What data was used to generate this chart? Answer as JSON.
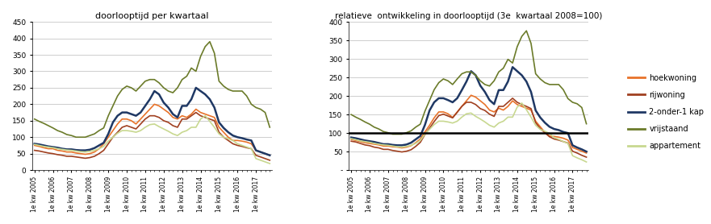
{
  "title1": "doorlooptijd per kwartaal",
  "title2": "relatieve  ontwikkeling in doorlooptijd (3e  kwartaal 2008=100)",
  "colors": {
    "hoekwoning": "#E8732A",
    "rijwoning": "#A04020",
    "twee_onder_1_kap": "#1F3864",
    "vrijstaand": "#6B7B2A",
    "appartement": "#C8D890"
  },
  "legend_labels": [
    "hoekwoning",
    "rijwoning",
    "2-onder-1 kap",
    "vrijstaand",
    "appartement"
  ],
  "x_labels_annual": [
    "1e kw 2005",
    "1e kw 2006",
    "1e kw 2007",
    "1e kw 2008",
    "1e kw 2009",
    "1e kw 2010",
    "1e kw 2011",
    "1e kw 2012",
    "1e kw 2013",
    "1e kw 2014",
    "1e kw 2015",
    "1e kw 2016",
    "1e kw 2017"
  ],
  "chart1_ylim": [
    0,
    450
  ],
  "chart1_yticks": [
    0,
    50,
    100,
    150,
    200,
    250,
    300,
    350,
    400,
    450
  ],
  "chart2_ylim": [
    0,
    400
  ],
  "chart2_yticks": [
    0,
    50,
    100,
    150,
    200,
    250,
    300,
    350,
    400
  ],
  "chart2_yticklabels": [
    "-",
    "50",
    "100",
    "150",
    "200",
    "250",
    "300",
    "350",
    "400"
  ],
  "hoekwoning_chart1": [
    75,
    72,
    68,
    65,
    65,
    60,
    58,
    55,
    55,
    52,
    50,
    48,
    50,
    55,
    65,
    80,
    100,
    120,
    140,
    155,
    155,
    150,
    140,
    155,
    170,
    185,
    200,
    195,
    185,
    175,
    160,
    155,
    165,
    160,
    170,
    185,
    175,
    170,
    165,
    160,
    130,
    115,
    100,
    90,
    90,
    88,
    85,
    80,
    60,
    55,
    50,
    45
  ],
  "rijwoning_chart1": [
    60,
    58,
    55,
    52,
    50,
    47,
    45,
    42,
    42,
    40,
    38,
    36,
    38,
    42,
    50,
    60,
    80,
    100,
    115,
    130,
    135,
    130,
    125,
    140,
    155,
    165,
    165,
    160,
    150,
    145,
    135,
    130,
    155,
    155,
    165,
    175,
    165,
    160,
    155,
    150,
    115,
    100,
    90,
    80,
    75,
    72,
    68,
    65,
    45,
    40,
    35,
    30
  ],
  "twee_onder_1_kap_chart1": [
    80,
    78,
    75,
    72,
    70,
    68,
    65,
    63,
    63,
    61,
    60,
    60,
    62,
    67,
    75,
    83,
    110,
    145,
    165,
    175,
    175,
    170,
    165,
    175,
    195,
    215,
    240,
    230,
    205,
    190,
    170,
    160,
    195,
    195,
    215,
    250,
    240,
    230,
    215,
    190,
    145,
    128,
    115,
    105,
    100,
    97,
    93,
    90,
    60,
    55,
    50,
    45
  ],
  "vrijstaand_chart1": [
    155,
    148,
    142,
    135,
    128,
    120,
    115,
    108,
    105,
    100,
    100,
    100,
    105,
    110,
    120,
    128,
    165,
    195,
    225,
    245,
    255,
    250,
    240,
    255,
    270,
    275,
    275,
    265,
    250,
    240,
    235,
    250,
    275,
    285,
    310,
    300,
    345,
    375,
    390,
    355,
    270,
    255,
    245,
    240,
    240,
    240,
    225,
    200,
    190,
    185,
    175,
    130
  ],
  "appartement_chart1": [
    78,
    75,
    72,
    70,
    68,
    65,
    63,
    61,
    60,
    58,
    56,
    55,
    57,
    60,
    65,
    72,
    88,
    100,
    112,
    120,
    120,
    118,
    115,
    120,
    130,
    138,
    140,
    132,
    125,
    118,
    110,
    105,
    115,
    120,
    130,
    130,
    155,
    165,
    148,
    130,
    110,
    100,
    95,
    90,
    80,
    75,
    70,
    65,
    35,
    30,
    25,
    20
  ],
  "hoekwoning_chart2": [
    83,
    80,
    77,
    74,
    72,
    70,
    68,
    65,
    65,
    63,
    62,
    60,
    62,
    66,
    74,
    84,
    103,
    121,
    141,
    157,
    157,
    152,
    142,
    157,
    172,
    187,
    202,
    197,
    187,
    177,
    162,
    157,
    167,
    162,
    172,
    187,
    177,
    172,
    167,
    162,
    132,
    117,
    102,
    92,
    91,
    89,
    86,
    81,
    61,
    56,
    51,
    46
  ],
  "rijwoning_chart2": [
    78,
    76,
    72,
    68,
    66,
    62,
    60,
    56,
    56,
    53,
    51,
    49,
    51,
    55,
    64,
    75,
    96,
    113,
    131,
    147,
    151,
    146,
    141,
    156,
    172,
    183,
    183,
    177,
    166,
    161,
    151,
    145,
    172,
    172,
    183,
    194,
    183,
    177,
    172,
    166,
    128,
    112,
    101,
    90,
    84,
    81,
    77,
    73,
    51,
    46,
    40,
    35
  ],
  "twee_onder_1_kap_chart2": [
    88,
    86,
    83,
    80,
    78,
    76,
    73,
    70,
    70,
    68,
    67,
    67,
    69,
    74,
    83,
    92,
    122,
    161,
    183,
    194,
    194,
    189,
    183,
    194,
    216,
    239,
    267,
    256,
    228,
    211,
    189,
    178,
    216,
    216,
    239,
    278,
    267,
    256,
    239,
    211,
    161,
    142,
    128,
    117,
    111,
    108,
    103,
    100,
    67,
    61,
    56,
    50
  ],
  "vrijstaand_chart2": [
    150,
    143,
    137,
    130,
    124,
    116,
    111,
    104,
    101,
    97,
    97,
    97,
    101,
    106,
    116,
    124,
    159,
    188,
    217,
    236,
    246,
    241,
    231,
    246,
    260,
    265,
    265,
    256,
    241,
    231,
    227,
    241,
    265,
    275,
    299,
    289,
    333,
    361,
    376,
    342,
    260,
    246,
    236,
    231,
    231,
    231,
    217,
    193,
    183,
    179,
    169,
    125
  ],
  "appartement_chart2": [
    85,
    82,
    79,
    77,
    75,
    72,
    70,
    68,
    67,
    65,
    63,
    62,
    64,
    67,
    72,
    80,
    97,
    110,
    123,
    132,
    132,
    130,
    127,
    132,
    143,
    152,
    154,
    145,
    138,
    130,
    121,
    116,
    127,
    132,
    143,
    143,
    170,
    181,
    163,
    143,
    121,
    110,
    105,
    99,
    88,
    83,
    77,
    72,
    39,
    33,
    28,
    22
  ]
}
